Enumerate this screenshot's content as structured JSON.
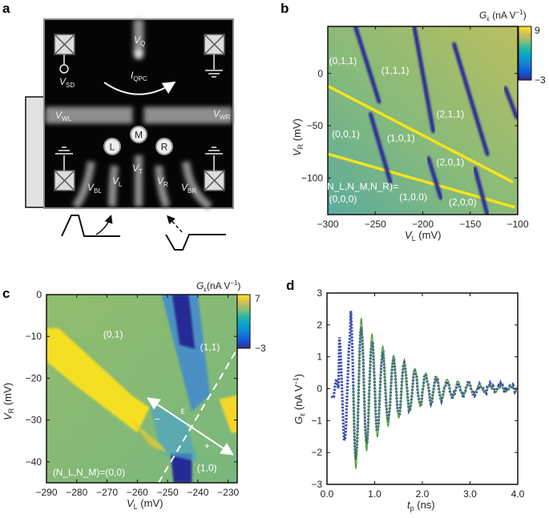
{
  "panel_labels": {
    "a": "a",
    "b": "b",
    "c": "c",
    "d": "d"
  },
  "panel_a": {
    "gates": {
      "VQ": {
        "main": "V",
        "sub": "Q"
      },
      "VSD": {
        "main": "V",
        "sub": "SD"
      },
      "IQPC": {
        "main": "I",
        "sub": "QPC"
      },
      "VWL": {
        "main": "V",
        "sub": "WL"
      },
      "VWR": {
        "main": "V",
        "sub": "WR"
      },
      "VBL": {
        "main": "V",
        "sub": "BL"
      },
      "VL": {
        "main": "V",
        "sub": "L"
      },
      "VT": {
        "main": "V",
        "sub": "T"
      },
      "VR": {
        "main": "V",
        "sub": "R"
      },
      "VBR": {
        "main": "V",
        "sub": "BR"
      }
    },
    "dots": {
      "L": "L",
      "M": "M",
      "R": "R"
    }
  },
  "chart_data": [
    {
      "id": "b",
      "type": "heatmap",
      "xlabel": {
        "main": "V",
        "sub": "L",
        "unit": " (mV)"
      },
      "ylabel": {
        "main": "V",
        "sub": "R",
        "unit": " (mV)"
      },
      "xlim": [
        -300,
        -100
      ],
      "ylim": [
        -135,
        45
      ],
      "xticks": [
        "−300",
        "−250",
        "−200",
        "−150",
        "−100"
      ],
      "xtick_values": [
        -300,
        -250,
        -200,
        -150,
        -100
      ],
      "yticks": [
        "0",
        "−50",
        "−100"
      ],
      "ytick_values": [
        0,
        -50,
        -100
      ],
      "colorbar": {
        "label_main": "G",
        "label_sub": "ε",
        "label_unit": " (nA V",
        "label_exp": "−1",
        "label_close": ")",
        "max": "9",
        "min": "−3",
        "range": [
          -3,
          9
        ]
      },
      "yellow_lines": [
        [
          [
            -300,
            -12
          ],
          [
            -105,
            -104
          ]
        ],
        [
          [
            -300,
            -77
          ],
          [
            -103,
            -128
          ]
        ]
      ],
      "blue_lines": [
        [
          [
            -271,
            45
          ],
          [
            -246,
            -27
          ]
        ],
        [
          [
            -255,
            -39
          ],
          [
            -234,
            -104
          ]
        ],
        [
          [
            -209,
            45
          ],
          [
            -189,
            -55
          ]
        ],
        [
          [
            -194,
            -81
          ],
          [
            -181,
            -119
          ]
        ],
        [
          [
            -167,
            28
          ],
          [
            -132,
            -77
          ]
        ],
        [
          [
            -145,
            -91
          ],
          [
            -132,
            -135
          ]
        ],
        [
          [
            -113,
            -14
          ],
          [
            -101,
            -42
          ]
        ]
      ],
      "annotations": [
        {
          "text": "(0,1,1)",
          "x": -284,
          "y": 12
        },
        {
          "text": "(1,1,1)",
          "x": -229,
          "y": 3
        },
        {
          "text": "(2,1,1)",
          "x": -171,
          "y": -39
        },
        {
          "text": "(0,0,1)",
          "x": -281,
          "y": -58
        },
        {
          "text": "(1,0,1)",
          "x": -223,
          "y": -62
        },
        {
          "text": "(2,0,1)",
          "x": -171,
          "y": -85
        },
        {
          "text": "(1,0,0)",
          "x": -210,
          "y": -118
        },
        {
          "text": "(2,0,0)",
          "x": -158,
          "y": -123
        },
        {
          "text": "(N_L,N_M,N_R)=",
          "x": -265,
          "y": -108
        },
        {
          "text": "(0,0,0)",
          "x": -284,
          "y": -120
        }
      ]
    },
    {
      "id": "c",
      "type": "heatmap",
      "xlabel": {
        "main": "V",
        "sub": "L",
        "unit": " (mV)"
      },
      "ylabel": {
        "main": "V",
        "sub": "R",
        "unit": " (mV)"
      },
      "xlim": [
        -290,
        -227
      ],
      "ylim": [
        -45,
        0
      ],
      "xticks": [
        "−290",
        "−280",
        "−270",
        "−260",
        "−250",
        "−240",
        "−230"
      ],
      "xtick_values": [
        -290,
        -280,
        -270,
        -260,
        -250,
        -240,
        -230
      ],
      "yticks": [
        "0",
        "−10",
        "−20",
        "−30",
        "−40"
      ],
      "ytick_values": [
        0,
        -10,
        -20,
        -30,
        -40
      ],
      "colorbar": {
        "label_main": "G",
        "label_sub": "ε",
        "label_unit": "(nA V",
        "label_exp": "−1",
        "label_close": ")",
        "max": "7",
        "min": "−3",
        "range": [
          -3,
          7
        ]
      },
      "detuning_axis": {
        "from": [
          -256,
          -25
        ],
        "to": [
          -229,
          -38
        ],
        "label": "ε",
        "minus": "−",
        "plus": "+"
      },
      "dashed_line": [
        [
          -253,
          -45
        ],
        [
          -227,
          -13
        ]
      ],
      "annotations": [
        {
          "text": "(0,1)",
          "x": -268,
          "y": -9.5
        },
        {
          "text": "(1,1)",
          "x": -236,
          "y": -12.5
        },
        {
          "text": "(1,0)",
          "x": -237,
          "y": -41.5
        },
        {
          "text": "(N_L,N_M)=(0,0)",
          "x": -276,
          "y": -42.5
        }
      ]
    },
    {
      "id": "d",
      "type": "line",
      "xlabel": {
        "main": "t",
        "sub": "p",
        "unit": " (ns)"
      },
      "ylabel": {
        "main": "G",
        "sub": "ε",
        "unit": " (nA V",
        "exp": "−1",
        "close": ")"
      },
      "xlim": [
        0,
        4
      ],
      "ylim": [
        -3,
        3
      ],
      "xticks": [
        "0.0",
        "1.0",
        "2.0",
        "3.0",
        "4.0"
      ],
      "xtick_values": [
        0,
        1,
        2,
        3,
        4
      ],
      "yticks": [
        "3",
        "2",
        "1",
        "0",
        "−1",
        "−2",
        "−3"
      ],
      "ytick_values": [
        3,
        2,
        1,
        0,
        -1,
        -2,
        -3
      ],
      "series": [
        {
          "name": "data",
          "style": "blue dotted markers",
          "color": "#3b4fb0",
          "t_start": 0.1,
          "t_end": 4.0,
          "t_step": 0.02
        },
        {
          "name": "fit",
          "style": "green line",
          "color": "#4a9a3a",
          "amplitude": 2.2,
          "t_ref": 0.72,
          "decay_ns": 0.9,
          "frequency_GHz": 4.44,
          "t_start": 0.55,
          "t_end": 4.0
        }
      ]
    }
  ]
}
